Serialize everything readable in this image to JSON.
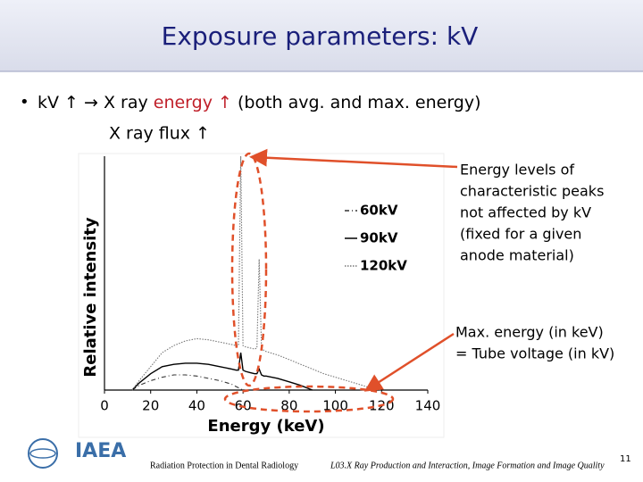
{
  "header": {
    "title": "Exposure parameters: kV"
  },
  "bullets": [
    {
      "parts": [
        "kV ↑ → X ray ",
        "energy ↑",
        " (both avg. and max. energy)"
      ]
    },
    {
      "parts": [
        "X ray flux ↑"
      ]
    }
  ],
  "chart_data": {
    "type": "line",
    "xlabel": "Energy (keV)",
    "ylabel": "Relative intensity",
    "xlim": [
      0,
      140
    ],
    "xticks": [
      0,
      20,
      40,
      60,
      80,
      100,
      120,
      140
    ],
    "ylim": [
      0,
      100
    ],
    "x": [
      12,
      15,
      20,
      25,
      30,
      35,
      40,
      45,
      50,
      55,
      57,
      58,
      59,
      60,
      61,
      63,
      65,
      66,
      67,
      68,
      69,
      70,
      75,
      80,
      85,
      90,
      95,
      100,
      105,
      110,
      115,
      120
    ],
    "series": [
      {
        "name": "60kV",
        "color": "#333333",
        "dash": "dash-dot",
        "values": [
          0,
          2,
          4,
          5.5,
          6.5,
          6.5,
          6,
          5,
          4,
          2.5,
          1.5,
          1,
          0.5,
          0,
          null,
          null,
          null,
          null,
          null,
          null,
          null,
          null,
          null,
          null,
          null,
          null,
          null,
          null,
          null,
          null,
          null,
          null
        ]
      },
      {
        "name": "90kV",
        "color": "#000000",
        "dash": "solid",
        "values": [
          0,
          3,
          7,
          10,
          11,
          11.5,
          11.5,
          11,
          10,
          9,
          8.5,
          8.5,
          16,
          8.5,
          8,
          7.5,
          7,
          7,
          9,
          6.5,
          6,
          6,
          5,
          3.5,
          2,
          0,
          null,
          null,
          null,
          null,
          null,
          null
        ]
      },
      {
        "name": "120kV",
        "color": "#777777",
        "dash": "dotted",
        "values": [
          0,
          4,
          10,
          16,
          19,
          21,
          22,
          21.5,
          20.5,
          19.5,
          19,
          19,
          100,
          19,
          18.5,
          18,
          17.5,
          18,
          56,
          18,
          17,
          16.5,
          15,
          13,
          11,
          9,
          7,
          5.5,
          4,
          2.5,
          1,
          0
        ]
      }
    ]
  },
  "annotations": [
    {
      "lines": [
        "Energy levels of",
        "characteristic peaks",
        "not affected by kV",
        "(fixed for a given",
        "anode material)"
      ]
    },
    {
      "lines": [
        "Max. energy (in keV)",
        "= Tube voltage (in kV)"
      ]
    }
  ],
  "footer": {
    "logo": "IAEA",
    "course": "Radiation Protection in Dental Radiology",
    "lecture": "L03.X Ray Production and Interaction, Image Formation and Image Quality",
    "page": "11"
  }
}
